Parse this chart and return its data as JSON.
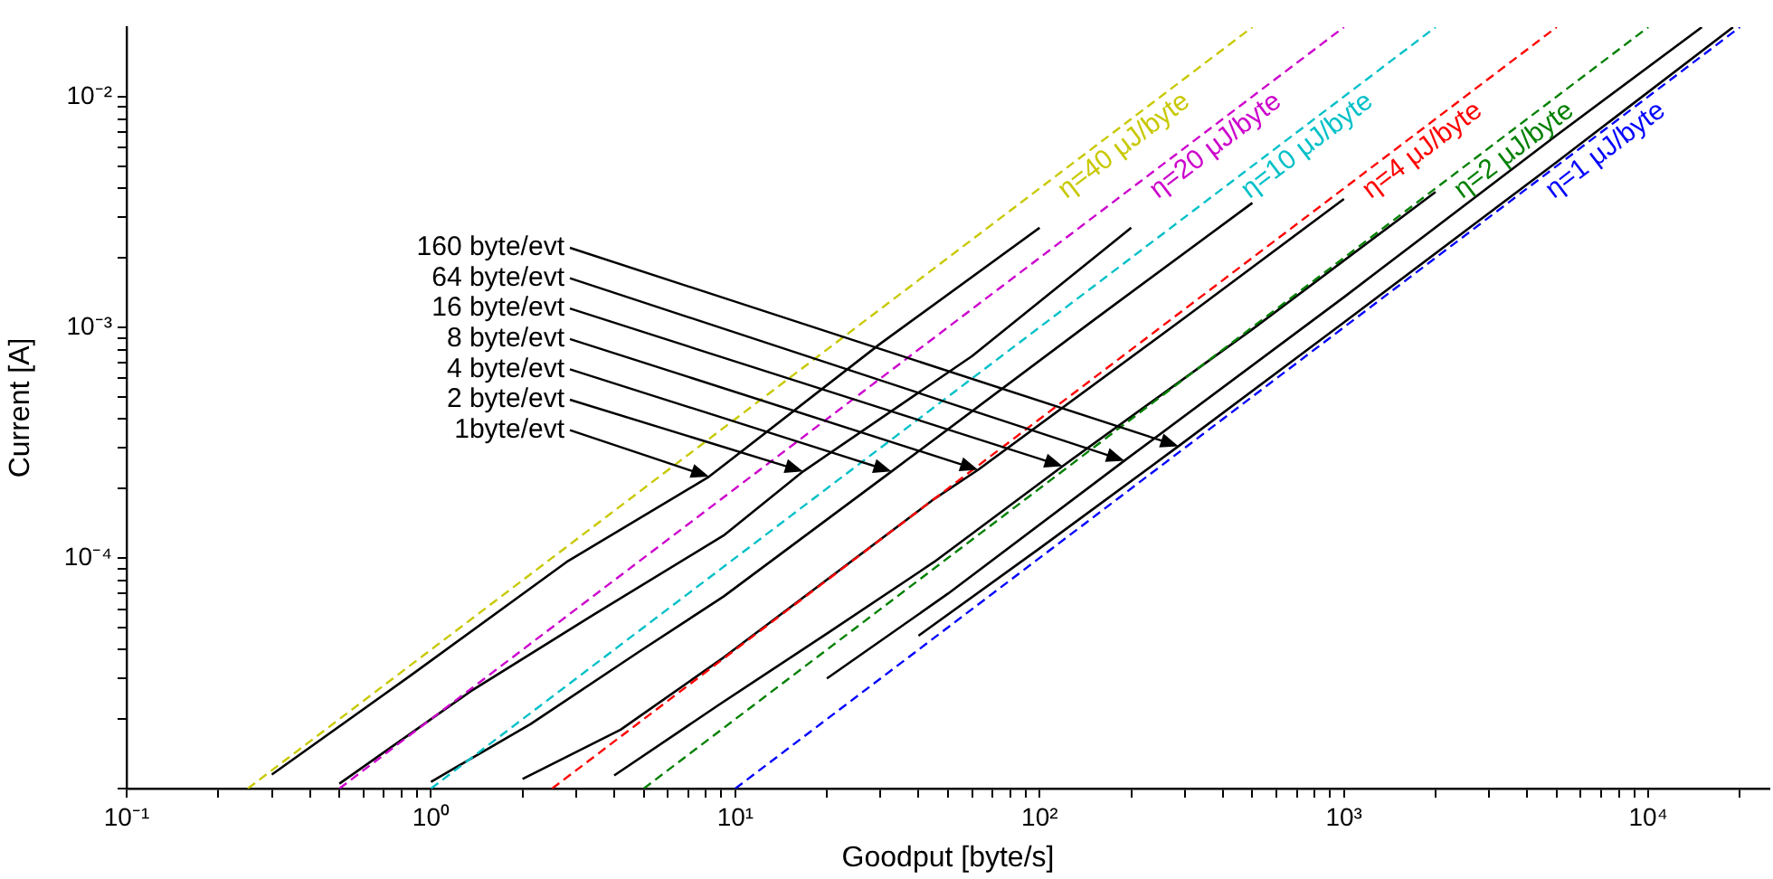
{
  "chart_data": {
    "type": "line",
    "xlabel": "Goodput [byte/s]",
    "ylabel": "Current [A]",
    "log": "xy",
    "grid": false,
    "legend": false,
    "marker": "none",
    "xlim": [
      0.1,
      25000
    ],
    "ylim": [
      1e-05,
      0.02
    ],
    "xticks": [
      {
        "value": 0.1,
        "label": "10⁻¹"
      },
      {
        "value": 0.2,
        "label": null
      },
      {
        "value": 0.3,
        "label": null
      },
      {
        "value": 0.4,
        "label": null
      },
      {
        "value": 0.5,
        "label": null
      },
      {
        "value": 0.6,
        "label": null
      },
      {
        "value": 0.7,
        "label": null
      },
      {
        "value": 0.8,
        "label": null
      },
      {
        "value": 0.9,
        "label": null
      },
      {
        "value": 1,
        "label": "10⁰"
      },
      {
        "value": 2,
        "label": null
      },
      {
        "value": 3,
        "label": null
      },
      {
        "value": 4,
        "label": null
      },
      {
        "value": 5,
        "label": null
      },
      {
        "value": 6,
        "label": null
      },
      {
        "value": 7,
        "label": null
      },
      {
        "value": 8,
        "label": null
      },
      {
        "value": 9,
        "label": null
      },
      {
        "value": 10,
        "label": "10¹"
      },
      {
        "value": 20,
        "label": null
      },
      {
        "value": 30,
        "label": null
      },
      {
        "value": 40,
        "label": null
      },
      {
        "value": 50,
        "label": null
      },
      {
        "value": 60,
        "label": null
      },
      {
        "value": 70,
        "label": null
      },
      {
        "value": 80,
        "label": null
      },
      {
        "value": 90,
        "label": null
      },
      {
        "value": 100,
        "label": "10²"
      },
      {
        "value": 200,
        "label": null
      },
      {
        "value": 300,
        "label": null
      },
      {
        "value": 400,
        "label": null
      },
      {
        "value": 500,
        "label": null
      },
      {
        "value": 600,
        "label": null
      },
      {
        "value": 700,
        "label": null
      },
      {
        "value": 800,
        "label": null
      },
      {
        "value": 900,
        "label": null
      },
      {
        "value": 1000,
        "label": "10³"
      },
      {
        "value": 2000,
        "label": null
      },
      {
        "value": 3000,
        "label": null
      },
      {
        "value": 4000,
        "label": null
      },
      {
        "value": 5000,
        "label": null
      },
      {
        "value": 6000,
        "label": null
      },
      {
        "value": 7000,
        "label": null
      },
      {
        "value": 8000,
        "label": null
      },
      {
        "value": 9000,
        "label": null
      },
      {
        "value": 10000,
        "label": "10⁴"
      },
      {
        "value": 20000,
        "label": null
      }
    ],
    "yticks": [
      {
        "value": 1e-05,
        "label": null
      },
      {
        "value": 2e-05,
        "label": null
      },
      {
        "value": 3e-05,
        "label": null
      },
      {
        "value": 4e-05,
        "label": null
      },
      {
        "value": 5e-05,
        "label": null
      },
      {
        "value": 6e-05,
        "label": null
      },
      {
        "value": 7e-05,
        "label": null
      },
      {
        "value": 8e-05,
        "label": null
      },
      {
        "value": 9e-05,
        "label": null
      },
      {
        "value": 0.0001,
        "label": "10⁻⁴"
      },
      {
        "value": 0.0002,
        "label": null
      },
      {
        "value": 0.0003,
        "label": null
      },
      {
        "value": 0.0004,
        "label": null
      },
      {
        "value": 0.0005,
        "label": null
      },
      {
        "value": 0.0006,
        "label": null
      },
      {
        "value": 0.0007,
        "label": null
      },
      {
        "value": 0.0008,
        "label": null
      },
      {
        "value": 0.0009,
        "label": null
      },
      {
        "value": 0.001,
        "label": "10⁻³"
      },
      {
        "value": 0.002,
        "label": null
      },
      {
        "value": 0.003,
        "label": null
      },
      {
        "value": 0.004,
        "label": null
      },
      {
        "value": 0.005,
        "label": null
      },
      {
        "value": 0.006,
        "label": null
      },
      {
        "value": 0.007,
        "label": null
      },
      {
        "value": 0.008,
        "label": null
      },
      {
        "value": 0.009,
        "label": null
      },
      {
        "value": 0.01,
        "label": "10⁻²"
      }
    ],
    "series": [
      {
        "name": "η=40 μJ/byte",
        "color": "#c8c800",
        "line_style": "dashed",
        "x": [
          0.25,
          500
        ],
        "values": [
          1e-05,
          0.02
        ]
      },
      {
        "name": "η=20 μJ/byte",
        "color": "#cc00cc",
        "line_style": "dashed",
        "x": [
          0.5,
          1000
        ],
        "values": [
          1e-05,
          0.02
        ]
      },
      {
        "name": "η=10 μJ/byte",
        "color": "#00c0c8",
        "line_style": "dashed",
        "x": [
          1,
          2000
        ],
        "values": [
          1e-05,
          0.02
        ]
      },
      {
        "name": "η=4 μJ/byte",
        "color": "#ff0000",
        "line_style": "dashed",
        "x": [
          2.5,
          5000
        ],
        "values": [
          1e-05,
          0.02
        ]
      },
      {
        "name": "η=2 μJ/byte",
        "color": "#008000",
        "line_style": "dashed",
        "x": [
          5,
          10000
        ],
        "values": [
          1e-05,
          0.02
        ]
      },
      {
        "name": "η=1 μJ/byte",
        "color": "#0000ff",
        "line_style": "dashed",
        "x": [
          10,
          20000
        ],
        "values": [
          1e-05,
          0.02
        ]
      },
      {
        "color": "#000000",
        "line_style": "solid",
        "x": [
          0.3,
          0.86,
          2.79,
          8.2,
          30,
          100
        ],
        "values": [
          1.15e-05,
          3.1e-05,
          9.6e-05,
          0.000225,
          0.00085,
          0.0027
        ]
      },
      {
        "color": "#000000",
        "line_style": "solid",
        "x": [
          0.5,
          1.35,
          3.37,
          9.15,
          16.7,
          60,
          200
        ],
        "values": [
          1.05e-05,
          2.64e-05,
          5.6e-05,
          0.000125,
          0.000237,
          0.00075,
          0.0027
        ]
      },
      {
        "color": "#000000",
        "line_style": "solid",
        "x": [
          1,
          2.12,
          4.8,
          9.15,
          32.6,
          150,
          500
        ],
        "values": [
          1.07e-05,
          1.9e-05,
          3.9e-05,
          6.8e-05,
          0.000237,
          0.00107,
          0.00346
        ]
      },
      {
        "color": "#000000",
        "line_style": "solid",
        "x": [
          2,
          4.2,
          9.15,
          45,
          62.8,
          300,
          1000
        ],
        "values": [
          1.1e-05,
          1.8e-05,
          3.7e-05,
          0.00018,
          0.000241,
          0.0011,
          0.0036
        ]
      },
      {
        "color": "#000000",
        "line_style": "solid",
        "x": [
          4,
          8.8,
          20,
          45,
          119,
          500,
          2000
        ],
        "values": [
          1.14e-05,
          2.3e-05,
          4.7e-05,
          9.6e-05,
          0.00025,
          0.00098,
          0.00386
        ]
      },
      {
        "color": "#000000",
        "line_style": "solid",
        "x": [
          20,
          50,
          190,
          1000,
          5000,
          15000
        ],
        "values": [
          3e-05,
          7e-05,
          0.000264,
          0.00135,
          0.0068,
          0.02
        ]
      },
      {
        "color": "#000000",
        "line_style": "solid",
        "x": [
          40,
          100,
          286,
          1000,
          5000,
          19000
        ],
        "values": [
          4.6e-05,
          0.00011,
          0.000305,
          0.00105,
          0.0052,
          0.02
        ]
      }
    ],
    "annotations": [
      {
        "text": "160 byte/evt",
        "x": 286,
        "y": 0.000305
      },
      {
        "text": "64 byte/evt",
        "x": 190,
        "y": 0.000264
      },
      {
        "text": "16 byte/evt",
        "x": 119,
        "y": 0.00025
      },
      {
        "text": "8 byte/evt",
        "x": 62.8,
        "y": 0.000241
      },
      {
        "text": "4 byte/evt",
        "x": 32.6,
        "y": 0.000237
      },
      {
        "text": "2 byte/evt",
        "x": 16.7,
        "y": 0.000237
      },
      {
        "text": "1byte/evt",
        "x": 8.2,
        "y": 0.000225
      }
    ]
  }
}
